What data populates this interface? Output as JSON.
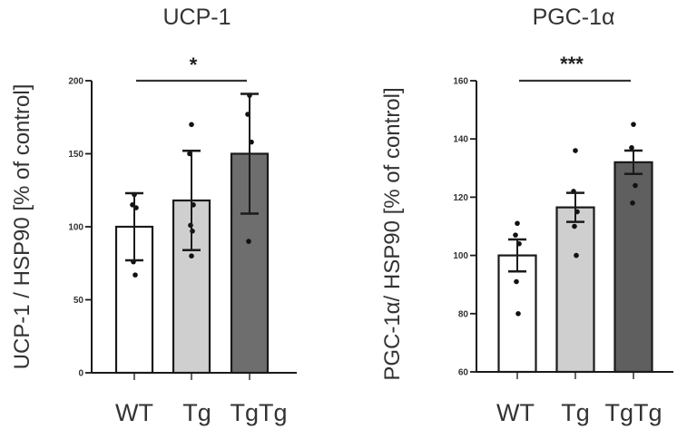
{
  "chart_data": [
    {
      "type": "bar",
      "title": "UCP-1",
      "xlabel": "",
      "ylabel": "UCP-1 / HSP90 [% of control]",
      "categories": [
        "WT",
        "Tg",
        "TgTg"
      ],
      "values": [
        100,
        118,
        150
      ],
      "error": [
        23,
        34,
        41
      ],
      "bar_colors": [
        "#ffffff",
        "#cfcfcf",
        "#6e6e6e"
      ],
      "points": [
        [
          122,
          115,
          113,
          76,
          67
        ],
        [
          170,
          150,
          115,
          101,
          97,
          80
        ],
        [
          190,
          177,
          158,
          90
        ]
      ],
      "ylim": [
        0,
        200
      ],
      "yticks": [
        "0",
        "50",
        "100",
        "150",
        "200"
      ],
      "ytick_values": [
        0,
        50,
        100,
        150,
        200
      ],
      "significance": {
        "from": "WT",
        "to": "TgTg",
        "label": "*",
        "level": 200
      },
      "grid": false
    },
    {
      "type": "bar",
      "title": "PGC-1α",
      "xlabel": "",
      "ylabel": "PGC-1α/ HSP90 [% of control]",
      "categories": [
        "WT",
        "Tg",
        "TgTg"
      ],
      "values": [
        100,
        116.5,
        132
      ],
      "error": [
        5.5,
        5,
        4
      ],
      "bar_colors": [
        "#ffffff",
        "#cfcfcf",
        "#5f5f5f"
      ],
      "points": [
        [
          111,
          107,
          104,
          91,
          80
        ],
        [
          136,
          122,
          115,
          110,
          100
        ],
        [
          145,
          137,
          124,
          118
        ]
      ],
      "ylim": [
        60,
        160
      ],
      "yticks": [
        "60",
        "80",
        "100",
        "120",
        "140",
        "160"
      ],
      "ytick_values": [
        60,
        80,
        100,
        120,
        140,
        160
      ],
      "significance": {
        "from": "WT",
        "to": "TgTg",
        "label": "***",
        "level": 160
      },
      "grid": false
    }
  ]
}
